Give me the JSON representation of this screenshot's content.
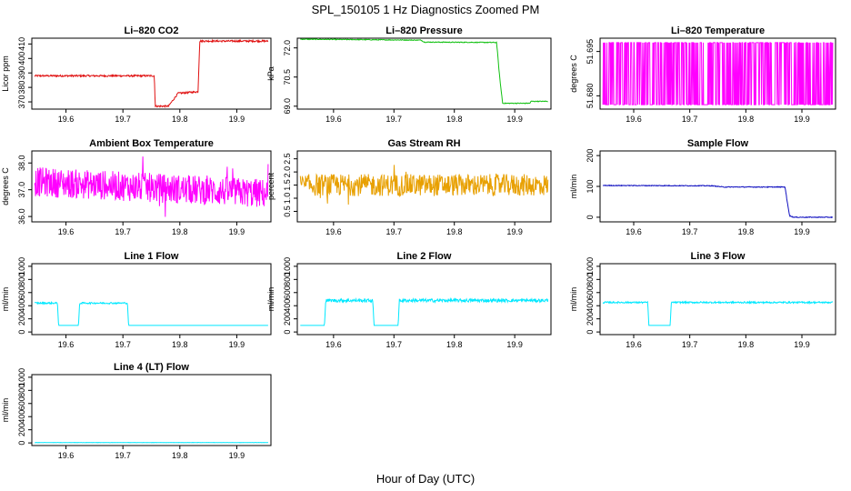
{
  "title": "SPL_150105  1 Hz Diagnostics Zoomed PM",
  "xlabel": "Hour of Day (UTC)",
  "chart_data": [
    {
      "type": "line",
      "title": "Li–820 CO2",
      "ylabel": "Licor ppm",
      "color": "#e01010",
      "xlim": [
        19.54,
        19.96
      ],
      "ylim": [
        365,
        414
      ],
      "xticks": [
        19.6,
        19.7,
        19.8,
        19.9
      ],
      "xtick_labels": [
        "19.6",
        "19.7",
        "19.8",
        "19.9"
      ],
      "yticks": [
        370,
        380,
        390,
        400,
        410
      ],
      "ytick_labels": [
        "370",
        "380",
        "390",
        "400",
        "410"
      ],
      "series": [
        {
          "noise": 0.6,
          "x": [
            19.545,
            19.755,
            19.757,
            19.778,
            19.78,
            19.797,
            19.8,
            19.832,
            19.835,
            19.955
          ],
          "y": [
            388,
            388,
            367,
            367,
            367,
            376,
            376,
            377,
            412,
            412
          ]
        }
      ]
    },
    {
      "type": "line",
      "title": "Li–820 Pressure",
      "ylabel": "kPa",
      "color": "#10c010",
      "xlim": [
        19.54,
        19.96
      ],
      "ylim": [
        68.85,
        72.5
      ],
      "xticks": [
        19.6,
        19.7,
        19.8,
        19.9
      ],
      "xtick_labels": [
        "19.6",
        "19.7",
        "19.8",
        "19.9"
      ],
      "yticks": [
        69.0,
        70.5,
        72.0
      ],
      "ytick_labels": [
        "69.0",
        "70.5",
        "72.0"
      ],
      "series": [
        {
          "noise": 0.02,
          "x": [
            19.545,
            19.745,
            19.75,
            19.87,
            19.875,
            19.88,
            19.925,
            19.927,
            19.955
          ],
          "y": [
            72.45,
            72.4,
            72.3,
            72.28,
            70.5,
            69.15,
            69.15,
            69.25,
            69.25
          ]
        }
      ]
    },
    {
      "type": "line",
      "title": "Li–820 Temperature",
      "ylabel": "degrees C",
      "color": "#ff00ff",
      "xlim": [
        19.54,
        19.96
      ],
      "ylim": [
        51.6755,
        51.6995
      ],
      "xticks": [
        19.6,
        19.7,
        19.8,
        19.9
      ],
      "xtick_labels": [
        "19.6",
        "19.7",
        "19.8",
        "19.9"
      ],
      "yticks": [
        51.68,
        51.695
      ],
      "ytick_labels": [
        "51.680",
        "51.695"
      ],
      "series": [
        {
          "pattern": "toggle",
          "low": 51.677,
          "high": 51.698,
          "x": [
            19.545,
            19.955
          ]
        }
      ]
    },
    {
      "type": "line",
      "title": "Ambient Box Temperature",
      "ylabel": "degrees C",
      "color": "#ff00ff",
      "xlim": [
        19.54,
        19.96
      ],
      "ylim": [
        35.8,
        38.45
      ],
      "xticks": [
        19.6,
        19.7,
        19.8,
        19.9
      ],
      "xtick_labels": [
        "19.6",
        "19.7",
        "19.8",
        "19.9"
      ],
      "yticks": [
        36.0,
        37.0,
        38.0
      ],
      "ytick_labels": [
        "36.0",
        "37.0",
        "38.0"
      ],
      "series": [
        {
          "pattern": "band",
          "x": [
            19.545,
            19.955
          ],
          "center": [
            37.3,
            36.85
          ],
          "halfwidth": 0.55
        }
      ]
    },
    {
      "type": "line",
      "title": "Gas Stream RH",
      "ylabel": "percent",
      "color": "#e8a000",
      "xlim": [
        19.54,
        19.96
      ],
      "ylim": [
        0.1,
        2.8
      ],
      "xticks": [
        19.6,
        19.7,
        19.8,
        19.9
      ],
      "xtick_labels": [
        "19.6",
        "19.7",
        "19.8",
        "19.9"
      ],
      "yticks": [
        0.5,
        1.0,
        1.5,
        2.0,
        2.5
      ],
      "ytick_labels": [
        "0.5",
        "1.0",
        "1.5",
        "2.0",
        "2.5"
      ],
      "series": [
        {
          "pattern": "band",
          "x": [
            19.545,
            19.955
          ],
          "center": [
            1.5,
            1.5
          ],
          "halfwidth": 0.42
        }
      ]
    },
    {
      "type": "line",
      "title": "Sample Flow",
      "ylabel": "ml/min",
      "color": "#1010c0",
      "xlim": [
        19.54,
        19.96
      ],
      "ylim": [
        -15,
        215
      ],
      "xticks": [
        19.6,
        19.7,
        19.8,
        19.9
      ],
      "xtick_labels": [
        "19.6",
        "19.7",
        "19.8",
        "19.9"
      ],
      "yticks": [
        0,
        100,
        200
      ],
      "ytick_labels": [
        "0",
        "100",
        "200"
      ],
      "series": [
        {
          "noise": 1.2,
          "x": [
            19.545,
            19.74,
            19.76,
            19.87,
            19.873,
            19.878,
            19.885,
            19.955
          ],
          "y": [
            103,
            102,
            98,
            98,
            60,
            5,
            0,
            0
          ]
        }
      ]
    },
    {
      "type": "line",
      "title": "Line 1 Flow",
      "ylabel": "ml/min",
      "color": "#00e8ff",
      "xlim": [
        19.54,
        19.96
      ],
      "ylim": [
        -40,
        1040
      ],
      "xticks": [
        19.6,
        19.7,
        19.8,
        19.9
      ],
      "xtick_labels": [
        "19.6",
        "19.7",
        "19.8",
        "19.9"
      ],
      "yticks": [
        0,
        200,
        400,
        600,
        800,
        1000
      ],
      "ytick_labels": [
        "0",
        "200",
        "400",
        "600",
        "800",
        "1000"
      ],
      "series": [
        {
          "noise": 12,
          "x": [
            19.545,
            19.585,
            19.587,
            19.622,
            19.624,
            19.708,
            19.71,
            19.955
          ],
          "y": [
            440,
            440,
            100,
            100,
            440,
            440,
            100,
            100
          ],
          "noisy_segments": [
            [
              19.545,
              19.585
            ],
            [
              19.624,
              19.708
            ]
          ]
        }
      ]
    },
    {
      "type": "line",
      "title": "Line 2 Flow",
      "ylabel": "ml/min",
      "color": "#00e8ff",
      "xlim": [
        19.54,
        19.96
      ],
      "ylim": [
        -40,
        1040
      ],
      "xticks": [
        19.6,
        19.7,
        19.8,
        19.9
      ],
      "xtick_labels": [
        "19.6",
        "19.7",
        "19.8",
        "19.9"
      ],
      "yticks": [
        0,
        200,
        400,
        600,
        800,
        1000
      ],
      "ytick_labels": [
        "0",
        "200",
        "400",
        "600",
        "800",
        "1000"
      ],
      "series": [
        {
          "noise": 25,
          "x": [
            19.545,
            19.585,
            19.587,
            19.665,
            19.667,
            19.707,
            19.709,
            19.955
          ],
          "y": [
            100,
            100,
            480,
            480,
            100,
            100,
            480,
            480
          ],
          "noisy_segments": [
            [
              19.587,
              19.665
            ],
            [
              19.709,
              19.955
            ]
          ]
        }
      ]
    },
    {
      "type": "line",
      "title": "Line 3 Flow",
      "ylabel": "ml/min",
      "color": "#00e8ff",
      "xlim": [
        19.54,
        19.96
      ],
      "ylim": [
        -40,
        1040
      ],
      "xticks": [
        19.6,
        19.7,
        19.8,
        19.9
      ],
      "xtick_labels": [
        "19.6",
        "19.7",
        "19.8",
        "19.9"
      ],
      "yticks": [
        0,
        200,
        400,
        600,
        800,
        1000
      ],
      "ytick_labels": [
        "0",
        "200",
        "400",
        "600",
        "800",
        "1000"
      ],
      "series": [
        {
          "noise": 12,
          "x": [
            19.545,
            19.625,
            19.627,
            19.665,
            19.667,
            19.955
          ],
          "y": [
            450,
            450,
            100,
            100,
            450,
            450
          ],
          "noisy_segments": [
            [
              19.545,
              19.625
            ],
            [
              19.667,
              19.955
            ]
          ]
        }
      ]
    },
    {
      "type": "line",
      "title": "Line 4 (LT) Flow",
      "ylabel": "ml/min",
      "color": "#00e8ff",
      "xlim": [
        19.54,
        19.96
      ],
      "ylim": [
        -40,
        1040
      ],
      "xticks": [
        19.6,
        19.7,
        19.8,
        19.9
      ],
      "xtick_labels": [
        "19.6",
        "19.7",
        "19.8",
        "19.9"
      ],
      "yticks": [
        0,
        200,
        400,
        600,
        800,
        1000
      ],
      "ytick_labels": [
        "0",
        "200",
        "400",
        "600",
        "800",
        "1000"
      ],
      "series": [
        {
          "noise": 2,
          "x": [
            19.545,
            19.955
          ],
          "y": [
            5,
            5
          ]
        }
      ]
    }
  ]
}
